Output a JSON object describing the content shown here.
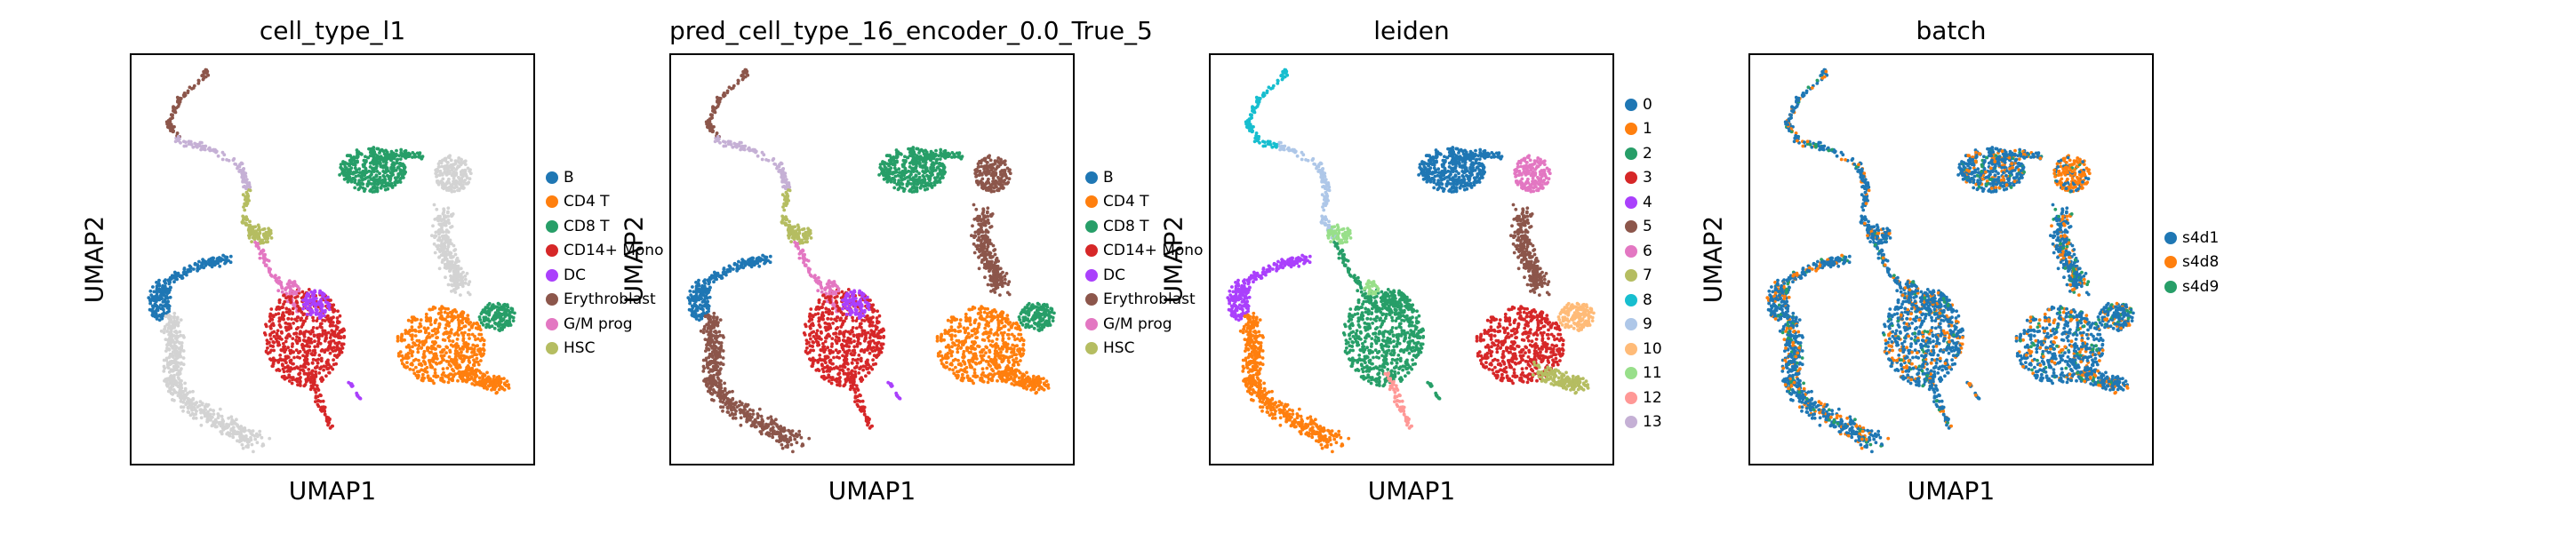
{
  "chart_data": [
    {
      "type": "scatter",
      "title": "cell_type_l1",
      "xlabel": "UMAP1",
      "ylabel": "UMAP2",
      "grid": false,
      "legend_position": "right",
      "categories": [
        {
          "name": "B",
          "color": "#1f77b4"
        },
        {
          "name": "CD4 T",
          "color": "#ff7f0e"
        },
        {
          "name": "CD8 T",
          "color": "#279e68"
        },
        {
          "name": "CD14+ Mono",
          "color": "#d62728"
        },
        {
          "name": "DC",
          "color": "#aa40fc"
        },
        {
          "name": "Erythroblast",
          "color": "#8c564b"
        },
        {
          "name": "G/M prog",
          "color": "#e377c2"
        },
        {
          "name": "HSC",
          "color": "#b5bd61"
        }
      ],
      "na_color": "#d3d3d3"
    },
    {
      "type": "scatter",
      "title": "pred_cell_type_16_encoder_0.0_True_5",
      "xlabel": "UMAP1",
      "ylabel": "UMAP2",
      "grid": false,
      "legend_position": "right",
      "categories": [
        {
          "name": "B",
          "color": "#1f77b4"
        },
        {
          "name": "CD4 T",
          "color": "#ff7f0e"
        },
        {
          "name": "CD8 T",
          "color": "#279e68"
        },
        {
          "name": "CD14+ Mono",
          "color": "#d62728"
        },
        {
          "name": "DC",
          "color": "#aa40fc"
        },
        {
          "name": "Erythroblast",
          "color": "#8c564b"
        },
        {
          "name": "G/M prog",
          "color": "#e377c2"
        },
        {
          "name": "HSC",
          "color": "#b5bd61"
        }
      ]
    },
    {
      "type": "scatter",
      "title": "leiden",
      "xlabel": "UMAP1",
      "ylabel": "UMAP2",
      "grid": false,
      "legend_position": "right",
      "categories": [
        {
          "name": "0",
          "color": "#1f77b4"
        },
        {
          "name": "1",
          "color": "#ff7f0e"
        },
        {
          "name": "2",
          "color": "#279e68"
        },
        {
          "name": "3",
          "color": "#d62728"
        },
        {
          "name": "4",
          "color": "#aa40fc"
        },
        {
          "name": "5",
          "color": "#8c564b"
        },
        {
          "name": "6",
          "color": "#e377c2"
        },
        {
          "name": "7",
          "color": "#b5bd61"
        },
        {
          "name": "8",
          "color": "#17becf"
        },
        {
          "name": "9",
          "color": "#aec7e8"
        },
        {
          "name": "10",
          "color": "#ffbb78"
        },
        {
          "name": "11",
          "color": "#98df8a"
        },
        {
          "name": "12",
          "color": "#ff9896"
        },
        {
          "name": "13",
          "color": "#c5b0d5"
        }
      ]
    },
    {
      "type": "scatter",
      "title": "batch",
      "xlabel": "UMAP1",
      "ylabel": "UMAP2",
      "grid": false,
      "legend_position": "right",
      "categories": [
        {
          "name": "s4d1",
          "color": "#1f77b4"
        },
        {
          "name": "s4d8",
          "color": "#ff7f0e"
        },
        {
          "name": "s4d9",
          "color": "#279e68"
        }
      ]
    }
  ]
}
